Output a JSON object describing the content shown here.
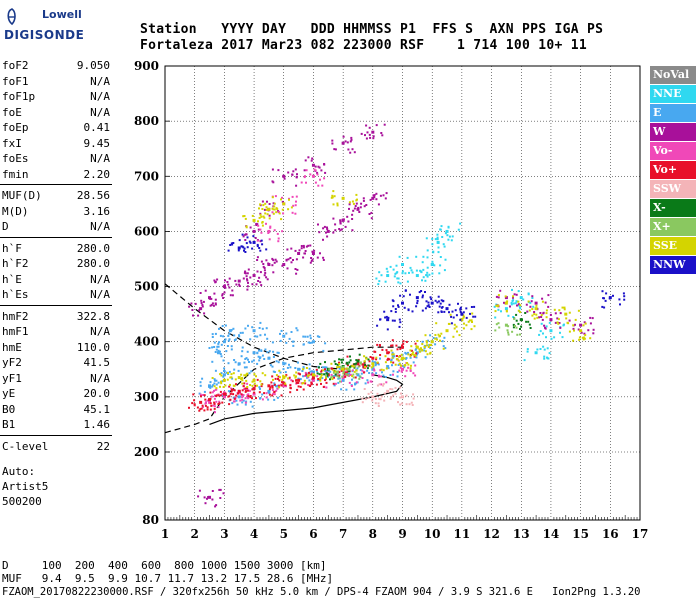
{
  "logo": {
    "brand_top": "Lowell",
    "brand_bottom": "DIGISONDE"
  },
  "header": {
    "line1": "Station   YYYY DAY   DDD HHMMSS P1  FFS S  AXN PPS IGA PS",
    "line2": "Fortaleza 2017 Mar23 082 223000 RSF    1 714 100 10+ 11"
  },
  "params_group1": [
    {
      "key": "foF2",
      "value": "9.050"
    },
    {
      "key": "foF1",
      "value": "N/A"
    },
    {
      "key": "foF1p",
      "value": "N/A"
    },
    {
      "key": "foE",
      "value": "N/A"
    },
    {
      "key": "foEp",
      "value": "0.41"
    },
    {
      "key": "fxI",
      "value": "9.45"
    },
    {
      "key": "foEs",
      "value": "N/A"
    },
    {
      "key": "fmin",
      "value": "2.20"
    }
  ],
  "params_group2": [
    {
      "key": "MUF(D)",
      "value": "28.56"
    },
    {
      "key": "M(D)",
      "value": "3.16"
    },
    {
      "key": "D",
      "value": "N/A"
    }
  ],
  "params_group3": [
    {
      "key": "h`F",
      "value": "280.0"
    },
    {
      "key": "h`F2",
      "value": "280.0"
    },
    {
      "key": "h`E",
      "value": "N/A"
    },
    {
      "key": "h`Es",
      "value": "N/A"
    }
  ],
  "params_group4": [
    {
      "key": "hmF2",
      "value": "322.8"
    },
    {
      "key": "hmF1",
      "value": "N/A"
    },
    {
      "key": "hmE",
      "value": "110.0"
    },
    {
      "key": "yF2",
      "value": "41.5"
    },
    {
      "key": "yF1",
      "value": "N/A"
    },
    {
      "key": "yE",
      "value": "20.0"
    },
    {
      "key": "B0",
      "value": "45.1"
    },
    {
      "key": "B1",
      "value": "1.46"
    }
  ],
  "params_group5": [
    {
      "key": "C-level",
      "value": "22"
    }
  ],
  "autoscale": {
    "line1": "Auto:",
    "line2": "Artist5",
    "line3": "500200"
  },
  "legend": [
    {
      "label": "NoVal",
      "color": "#8a8a8a"
    },
    {
      "label": "NNE",
      "color": "#2fd8f0"
    },
    {
      "label": "E",
      "color": "#48a8f0"
    },
    {
      "label": "W",
      "color": "#a8109a"
    },
    {
      "label": "Vo-",
      "color": "#f048b8"
    },
    {
      "label": "Vo+",
      "color": "#e8102a"
    },
    {
      "label": "SSW",
      "color": "#f4b4b8"
    },
    {
      "label": "X-",
      "color": "#0a7a18"
    },
    {
      "label": "X+",
      "color": "#8ac860"
    },
    {
      "label": "SSE",
      "color": "#d4d400"
    },
    {
      "label": "NNW",
      "color": "#1a10c8"
    }
  ],
  "footer": {
    "d_line": "D     100  200  400  600  800 1000 1500 3000 [km]",
    "muf_line": "MUF   9.4  9.5  9.9 10.7 11.7 13.2 17.5 28.6 [MHz]",
    "file_line": "FZAOM_20170822230000.RSF / 320fx256h 50 kHz 5.0 km / DPS-4 FZAOM 904 / 3.9 S 321.6 E   Ion2Png 1.3.20"
  },
  "chart_data": {
    "type": "scatter",
    "x": {
      "min": 1,
      "max": 17,
      "ticks": [
        "1",
        "2",
        "3",
        "4",
        "5",
        "6",
        "7",
        "8",
        "9",
        "10",
        "11",
        "12",
        "13",
        "14",
        "15",
        "16",
        "17"
      ]
    },
    "y": {
      "min": 80,
      "max": 900,
      "ticks": [
        "80",
        "200",
        "300",
        "400",
        "500",
        "600",
        "700",
        "800",
        "900"
      ]
    },
    "grid": true,
    "series": [
      {
        "name": "E",
        "color": "#48a8f0",
        "points": [
          [
            2.5,
            320
          ],
          [
            3,
            340
          ],
          [
            3.5,
            360
          ],
          [
            4,
            380
          ],
          [
            4.5,
            370
          ],
          [
            5,
            360
          ],
          [
            5.5,
            350
          ],
          [
            6,
            345
          ],
          [
            6.5,
            340
          ],
          [
            7,
            330
          ],
          [
            7.5,
            340
          ],
          [
            8,
            350
          ],
          [
            8.5,
            355
          ],
          [
            9,
            370
          ],
          [
            9.5,
            380
          ],
          [
            10,
            400
          ],
          [
            3,
            400
          ],
          [
            4,
            420
          ],
          [
            5,
            410
          ],
          [
            6,
            400
          ],
          [
            3.5,
            300
          ],
          [
            4.5,
            310
          ],
          [
            2.8,
            380
          ],
          [
            3.2,
            420
          ]
        ]
      },
      {
        "name": "NNE",
        "color": "#2fd8f0",
        "points": [
          [
            9.5,
            520
          ],
          [
            10,
            540
          ],
          [
            10.2,
            580
          ],
          [
            10.5,
            600
          ],
          [
            8.5,
            520
          ],
          [
            9,
            540
          ],
          [
            12.5,
            460
          ],
          [
            13,
            480
          ],
          [
            14,
            420
          ],
          [
            13.5,
            380
          ]
        ]
      },
      {
        "name": "W",
        "color": "#a8109a",
        "points": [
          [
            2.2,
            460
          ],
          [
            2.5,
            480
          ],
          [
            3,
            500
          ],
          [
            3.5,
            510
          ],
          [
            4,
            520
          ],
          [
            4.5,
            540
          ],
          [
            5,
            540
          ],
          [
            5.5,
            560
          ],
          [
            6,
            560
          ],
          [
            6.5,
            600
          ],
          [
            7,
            620
          ],
          [
            7.5,
            640
          ],
          [
            8,
            660
          ],
          [
            4,
            600
          ],
          [
            4.5,
            640
          ],
          [
            5,
            700
          ],
          [
            6,
            720
          ],
          [
            7,
            760
          ],
          [
            8,
            780
          ],
          [
            2.5,
            120
          ],
          [
            12.5,
            480
          ],
          [
            13.5,
            470
          ],
          [
            14,
            440
          ],
          [
            15,
            430
          ]
        ]
      },
      {
        "name": "Vo-",
        "color": "#f048b8",
        "points": [
          [
            2.5,
            290
          ],
          [
            3,
            300
          ],
          [
            3.5,
            310
          ],
          [
            4,
            305
          ],
          [
            5,
            320
          ],
          [
            6,
            330
          ],
          [
            7,
            335
          ],
          [
            8,
            340
          ],
          [
            9,
            350
          ],
          [
            4.5,
            600
          ],
          [
            5,
            650
          ],
          [
            6,
            700
          ]
        ]
      },
      {
        "name": "Vo+",
        "color": "#e8102a",
        "points": [
          [
            2.2,
            290
          ],
          [
            2.5,
            295
          ],
          [
            3,
            305
          ],
          [
            3.5,
            310
          ],
          [
            4,
            315
          ],
          [
            4.5,
            320
          ],
          [
            5,
            325
          ],
          [
            5.5,
            330
          ],
          [
            6,
            335
          ],
          [
            6.5,
            340
          ],
          [
            7,
            350
          ],
          [
            7.5,
            360
          ],
          [
            8,
            370
          ],
          [
            8.5,
            380
          ],
          [
            9,
            390
          ]
        ]
      },
      {
        "name": "SSW",
        "color": "#f4b4b8",
        "points": [
          [
            8,
            300
          ],
          [
            8.5,
            310
          ],
          [
            9,
            300
          ]
        ]
      },
      {
        "name": "X-",
        "color": "#0a7a18",
        "points": [
          [
            6.5,
            350
          ],
          [
            7,
            355
          ],
          [
            7.5,
            365
          ],
          [
            13,
            440
          ]
        ]
      },
      {
        "name": "X+",
        "color": "#8ac860",
        "points": [
          [
            6.8,
            345
          ],
          [
            7.2,
            350
          ],
          [
            12.5,
            430
          ]
        ]
      },
      {
        "name": "SSE",
        "color": "#d4d400",
        "points": [
          [
            3,
            330
          ],
          [
            3.5,
            335
          ],
          [
            4,
            330
          ],
          [
            5,
            335
          ],
          [
            6,
            340
          ],
          [
            7,
            350
          ],
          [
            8,
            360
          ],
          [
            9,
            370
          ],
          [
            9.5,
            390
          ],
          [
            10,
            400
          ],
          [
            10.5,
            420
          ],
          [
            11,
            440
          ],
          [
            4,
            620
          ],
          [
            4.5,
            640
          ],
          [
            5,
            650
          ],
          [
            7,
            660
          ],
          [
            9,
            370
          ],
          [
            12.5,
            470
          ],
          [
            13.5,
            460
          ],
          [
            14.5,
            450
          ],
          [
            15,
            420
          ]
        ]
      },
      {
        "name": "NNW",
        "color": "#1a10c8",
        "points": [
          [
            4,
            580
          ],
          [
            3.5,
            570
          ],
          [
            9,
            470
          ],
          [
            9.5,
            480
          ],
          [
            10,
            470
          ],
          [
            10.5,
            460
          ],
          [
            11,
            450
          ],
          [
            8.5,
            440
          ],
          [
            16,
            480
          ]
        ]
      }
    ],
    "profile_curves": [
      {
        "style": "solid",
        "points": [
          [
            2.5,
            250
          ],
          [
            3,
            260
          ],
          [
            4,
            270
          ],
          [
            5,
            275
          ],
          [
            6,
            280
          ],
          [
            7,
            290
          ],
          [
            8,
            300
          ],
          [
            8.8,
            310
          ],
          [
            9,
            322.8
          ],
          [
            8.8,
            330
          ],
          [
            8.5,
            335
          ],
          [
            8,
            340
          ]
        ]
      },
      {
        "style": "dashed",
        "points": [
          [
            1,
            235
          ],
          [
            2,
            250
          ],
          [
            2.5,
            260
          ],
          [
            3,
            300
          ],
          [
            4,
            350
          ],
          [
            5,
            370
          ],
          [
            6,
            380
          ],
          [
            7,
            385
          ],
          [
            8,
            390
          ],
          [
            9,
            390
          ]
        ]
      },
      {
        "style": "dashed",
        "points": [
          [
            1,
            505
          ],
          [
            2,
            460
          ],
          [
            3,
            420
          ],
          [
            4,
            390
          ],
          [
            5,
            370
          ],
          [
            6,
            355
          ],
          [
            7,
            350
          ]
        ]
      }
    ]
  }
}
